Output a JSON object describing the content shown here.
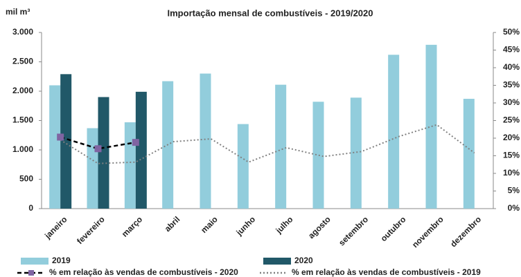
{
  "chart_data": {
    "type": "bar",
    "title": "Importação mensal de combustíveis - 2019/2020",
    "ylabel": "mil m³",
    "categories": [
      "janeiro",
      "fevereiro",
      "março",
      "abril",
      "maio",
      "junho",
      "julho",
      "agosto",
      "setembro",
      "outubro",
      "novembro",
      "dezembro"
    ],
    "series": [
      {
        "name": "2019",
        "color": "#92cddc",
        "values": [
          2100,
          1370,
          1470,
          2170,
          2300,
          1440,
          2110,
          1820,
          1890,
          2620,
          2790,
          1870
        ]
      },
      {
        "name": "2020",
        "color": "#215868",
        "values": [
          2290,
          1900,
          1990,
          null,
          null,
          null,
          null,
          null,
          null,
          null,
          null,
          null
        ]
      },
      {
        "name": "% em relação às vendas de combustíveis - 2020",
        "type": "line",
        "axis": "y2",
        "color": "#000000",
        "marker_color": "#8064a2",
        "dash": "dashed",
        "values": [
          20.3,
          17,
          18.8,
          null,
          null,
          null,
          null,
          null,
          null,
          null,
          null,
          null
        ]
      },
      {
        "name": "% em relação às vendas de combustíveis - 2019",
        "type": "line",
        "axis": "y2",
        "color": "#808080",
        "dash": "dotted",
        "values": [
          19.5,
          12.8,
          13.2,
          19,
          19.8,
          13.2,
          17.3,
          14.8,
          16.2,
          20.5,
          23.8,
          15.8
        ]
      }
    ],
    "ylim": [
      0,
      3000
    ],
    "yticks": [
      0,
      500,
      {
        "value": 1000,
        "label": "1.000"
      },
      {
        "value": 1500,
        "label": "1.500"
      },
      {
        "value": 2000,
        "label": "2.000"
      },
      {
        "value": 2500,
        "label": "2.500"
      },
      {
        "value": 3000,
        "label": "3.000"
      }
    ],
    "y2lim": [
      0,
      50
    ],
    "y2ticks": [
      {
        "value": 0,
        "label": "0%"
      },
      {
        "value": 5,
        "label": "5%"
      },
      {
        "value": 10,
        "label": "10%"
      },
      {
        "value": 15,
        "label": "15%"
      },
      {
        "value": 20,
        "label": "20%"
      },
      {
        "value": 25,
        "label": "25%"
      },
      {
        "value": 30,
        "label": "30%"
      },
      {
        "value": 35,
        "label": "35%"
      },
      {
        "value": 40,
        "label": "40%"
      },
      {
        "value": 45,
        "label": "45%"
      },
      {
        "value": 50,
        "label": "50%"
      }
    ],
    "grid": false
  }
}
